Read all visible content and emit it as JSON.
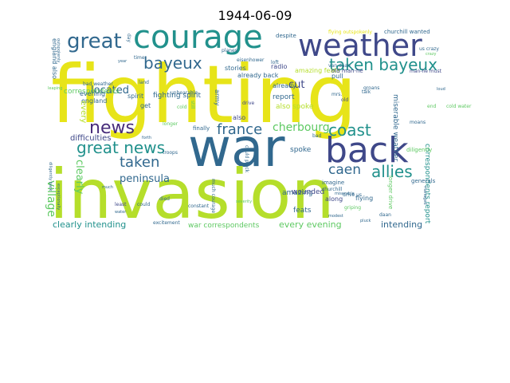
{
  "title": "1944-06-09",
  "palette": {
    "purple": "#3f4889",
    "teal": "#21918c",
    "green": "#5ec962",
    "lime": "#b5de2b",
    "yellow": "#e7e419",
    "blue": "#31688e",
    "darkpurple": "#472c7a"
  },
  "words": [
    {
      "text": "fighting",
      "color": "yellow"
    },
    {
      "text": "war",
      "color": "blue"
    },
    {
      "text": "invasion",
      "color": "lime"
    },
    {
      "text": "courage",
      "color": "teal"
    },
    {
      "text": "weather",
      "color": "purple"
    },
    {
      "text": "back",
      "color": "purple"
    },
    {
      "text": "great",
      "color": "blue"
    },
    {
      "text": "bayeux",
      "color": "blue"
    },
    {
      "text": "taken bayeux",
      "color": "teal"
    },
    {
      "text": "great news",
      "color": "teal"
    },
    {
      "text": "news",
      "color": "darkpurple"
    },
    {
      "text": "france",
      "color": "blue"
    },
    {
      "text": "coast",
      "color": "teal"
    },
    {
      "text": "cherbourg",
      "color": "green"
    },
    {
      "text": "taken",
      "color": "blue"
    },
    {
      "text": "caen",
      "color": "blue"
    },
    {
      "text": "allies",
      "color": "teal"
    },
    {
      "text": "village",
      "color": "green"
    },
    {
      "text": "clearly",
      "color": "green"
    },
    {
      "text": "peninsula",
      "color": "blue"
    },
    {
      "text": "located",
      "color": "blue"
    },
    {
      "text": "cut",
      "color": "purple"
    },
    {
      "text": "fighting spirit",
      "color": "blue"
    },
    {
      "text": "correspondents",
      "color": "green"
    },
    {
      "text": "clearly intending",
      "color": "teal"
    },
    {
      "text": "every evening",
      "color": "green"
    },
    {
      "text": "intending",
      "color": "blue"
    },
    {
      "text": "war correspondents",
      "color": "green"
    },
    {
      "text": "correspondents report",
      "color": "teal"
    },
    {
      "text": "miserable weather",
      "color": "blue"
    },
    {
      "text": "amazing",
      "color": "blue"
    },
    {
      "text": "feats",
      "color": "blue"
    },
    {
      "text": "wounded",
      "color": "purple"
    },
    {
      "text": "spoke",
      "color": "blue"
    },
    {
      "text": "also spoke",
      "color": "lime"
    },
    {
      "text": "report",
      "color": "blue"
    },
    {
      "text": "already",
      "color": "blue"
    },
    {
      "text": "already back",
      "color": "blue"
    },
    {
      "text": "amazing feats",
      "color": "lime"
    },
    {
      "text": "pull",
      "color": "blue"
    },
    {
      "text": "radio",
      "color": "purple"
    },
    {
      "text": "stories",
      "color": "blue"
    },
    {
      "text": "spirit",
      "color": "blue"
    },
    {
      "text": "evening",
      "color": "blue"
    },
    {
      "text": "england",
      "color": "blue"
    },
    {
      "text": "england also",
      "color": "blue"
    },
    {
      "text": "difficulties",
      "color": "purple"
    },
    {
      "text": "every",
      "color": "lime"
    },
    {
      "text": "get",
      "color": "blue"
    },
    {
      "text": "army",
      "color": "blue"
    },
    {
      "text": "also",
      "color": "purple"
    },
    {
      "text": "finally",
      "color": "blue"
    },
    {
      "text": "despite",
      "color": "blue"
    },
    {
      "text": "churchill wanted",
      "color": "blue"
    },
    {
      "text": "flying",
      "color": "blue"
    },
    {
      "text": "along",
      "color": "purple"
    },
    {
      "text": "imagine",
      "color": "blue"
    },
    {
      "text": "longer drive",
      "color": "green"
    },
    {
      "text": "generals",
      "color": "blue"
    },
    {
      "text": "diligently",
      "color": "green"
    },
    {
      "text": "moans",
      "color": "blue"
    },
    {
      "text": "old man-he",
      "color": "purple"
    },
    {
      "text": "man-he must",
      "color": "purple"
    },
    {
      "text": "van daan",
      "color": "blue"
    },
    {
      "text": "talk",
      "color": "blue"
    },
    {
      "text": "mrs.",
      "color": "blue"
    },
    {
      "text": "old",
      "color": "purple"
    },
    {
      "text": "bad",
      "color": "blue"
    },
    {
      "text": "planes",
      "color": "blue"
    },
    {
      "text": "eisenhower",
      "color": "blue"
    },
    {
      "text": "loft",
      "color": "blue"
    },
    {
      "text": "land",
      "color": "blue"
    },
    {
      "text": "bad weather",
      "color": "blue"
    },
    {
      "text": "unbearable",
      "color": "blue"
    },
    {
      "text": "time",
      "color": "blue"
    },
    {
      "text": "cold",
      "color": "green"
    },
    {
      "text": "cold water",
      "color": "green"
    },
    {
      "text": "drive",
      "color": "purple"
    },
    {
      "text": "still",
      "color": "green"
    },
    {
      "text": "troops",
      "color": "blue"
    },
    {
      "text": "forth",
      "color": "blue"
    },
    {
      "text": "longer",
      "color": "green"
    },
    {
      "text": "constant",
      "color": "blue"
    },
    {
      "text": "much courage",
      "color": "blue"
    },
    {
      "text": "excitement",
      "color": "blue"
    },
    {
      "text": "least",
      "color": "purple"
    },
    {
      "text": "could",
      "color": "blue"
    },
    {
      "text": "died",
      "color": "blue"
    },
    {
      "text": "could pluck",
      "color": "blue"
    },
    {
      "text": "severity",
      "color": "green"
    },
    {
      "text": "drive us",
      "color": "blue"
    },
    {
      "text": "griping",
      "color": "green"
    },
    {
      "text": "churchill",
      "color": "blue"
    },
    {
      "text": "miserable",
      "color": "blue"
    },
    {
      "text": "daan",
      "color": "blue"
    },
    {
      "text": "modest",
      "color": "blue"
    },
    {
      "text": "pluck",
      "color": "blue"
    },
    {
      "text": "much",
      "color": "blue"
    },
    {
      "text": "us crazy",
      "color": "blue"
    },
    {
      "text": "flying outspokenly",
      "color": "yellow"
    },
    {
      "text": "day",
      "color": "blue"
    },
    {
      "text": "leaping",
      "color": "green"
    },
    {
      "text": "managed",
      "color": "blue"
    },
    {
      "text": "diligently back",
      "color": "blue"
    },
    {
      "text": "exceptionally",
      "color": "blue"
    },
    {
      "text": "outspokenly",
      "color": "blue"
    },
    {
      "text": "loud",
      "color": "blue"
    },
    {
      "text": "end",
      "color": "green"
    },
    {
      "text": "groans",
      "color": "blue"
    },
    {
      "text": "water",
      "color": "blue"
    },
    {
      "text": "crazy",
      "color": "green"
    },
    {
      "text": "year",
      "color": "blue"
    }
  ]
}
